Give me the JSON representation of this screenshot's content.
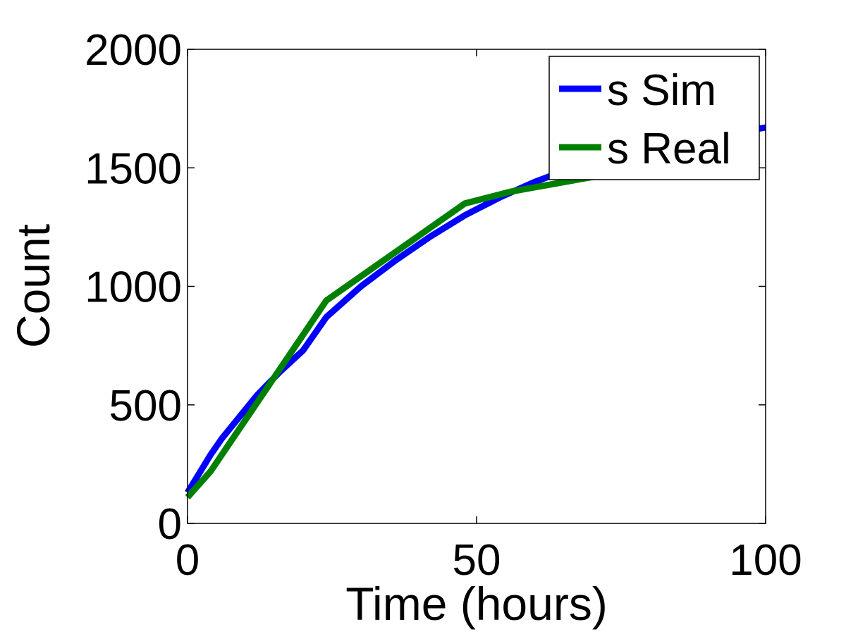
{
  "chart_data": {
    "type": "line",
    "title": "",
    "xlabel": "Time (hours)",
    "ylabel": "Count",
    "xlim": [
      0,
      100
    ],
    "ylim": [
      0,
      2000
    ],
    "xticks": [
      0,
      50,
      100
    ],
    "yticks": [
      0,
      500,
      1000,
      1500,
      2000
    ],
    "grid": false,
    "legend": {
      "placement": "top-right"
    },
    "series": [
      {
        "name": "s Sim",
        "color": "#0000ff",
        "x": [
          0,
          2,
          4,
          6,
          8,
          10,
          12,
          16,
          20,
          24,
          30,
          36,
          42,
          48,
          54,
          60,
          66,
          72,
          78,
          84,
          90,
          96,
          100
        ],
        "y": [
          130,
          210,
          290,
          360,
          420,
          480,
          540,
          640,
          730,
          870,
          1000,
          1110,
          1210,
          1300,
          1375,
          1440,
          1495,
          1540,
          1580,
          1610,
          1635,
          1655,
          1670
        ]
      },
      {
        "name": "s Real",
        "color": "#008000",
        "x": [
          0,
          4,
          24,
          48,
          56,
          72
        ],
        "y": [
          110,
          220,
          940,
          1350,
          1400,
          1470
        ]
      }
    ]
  }
}
